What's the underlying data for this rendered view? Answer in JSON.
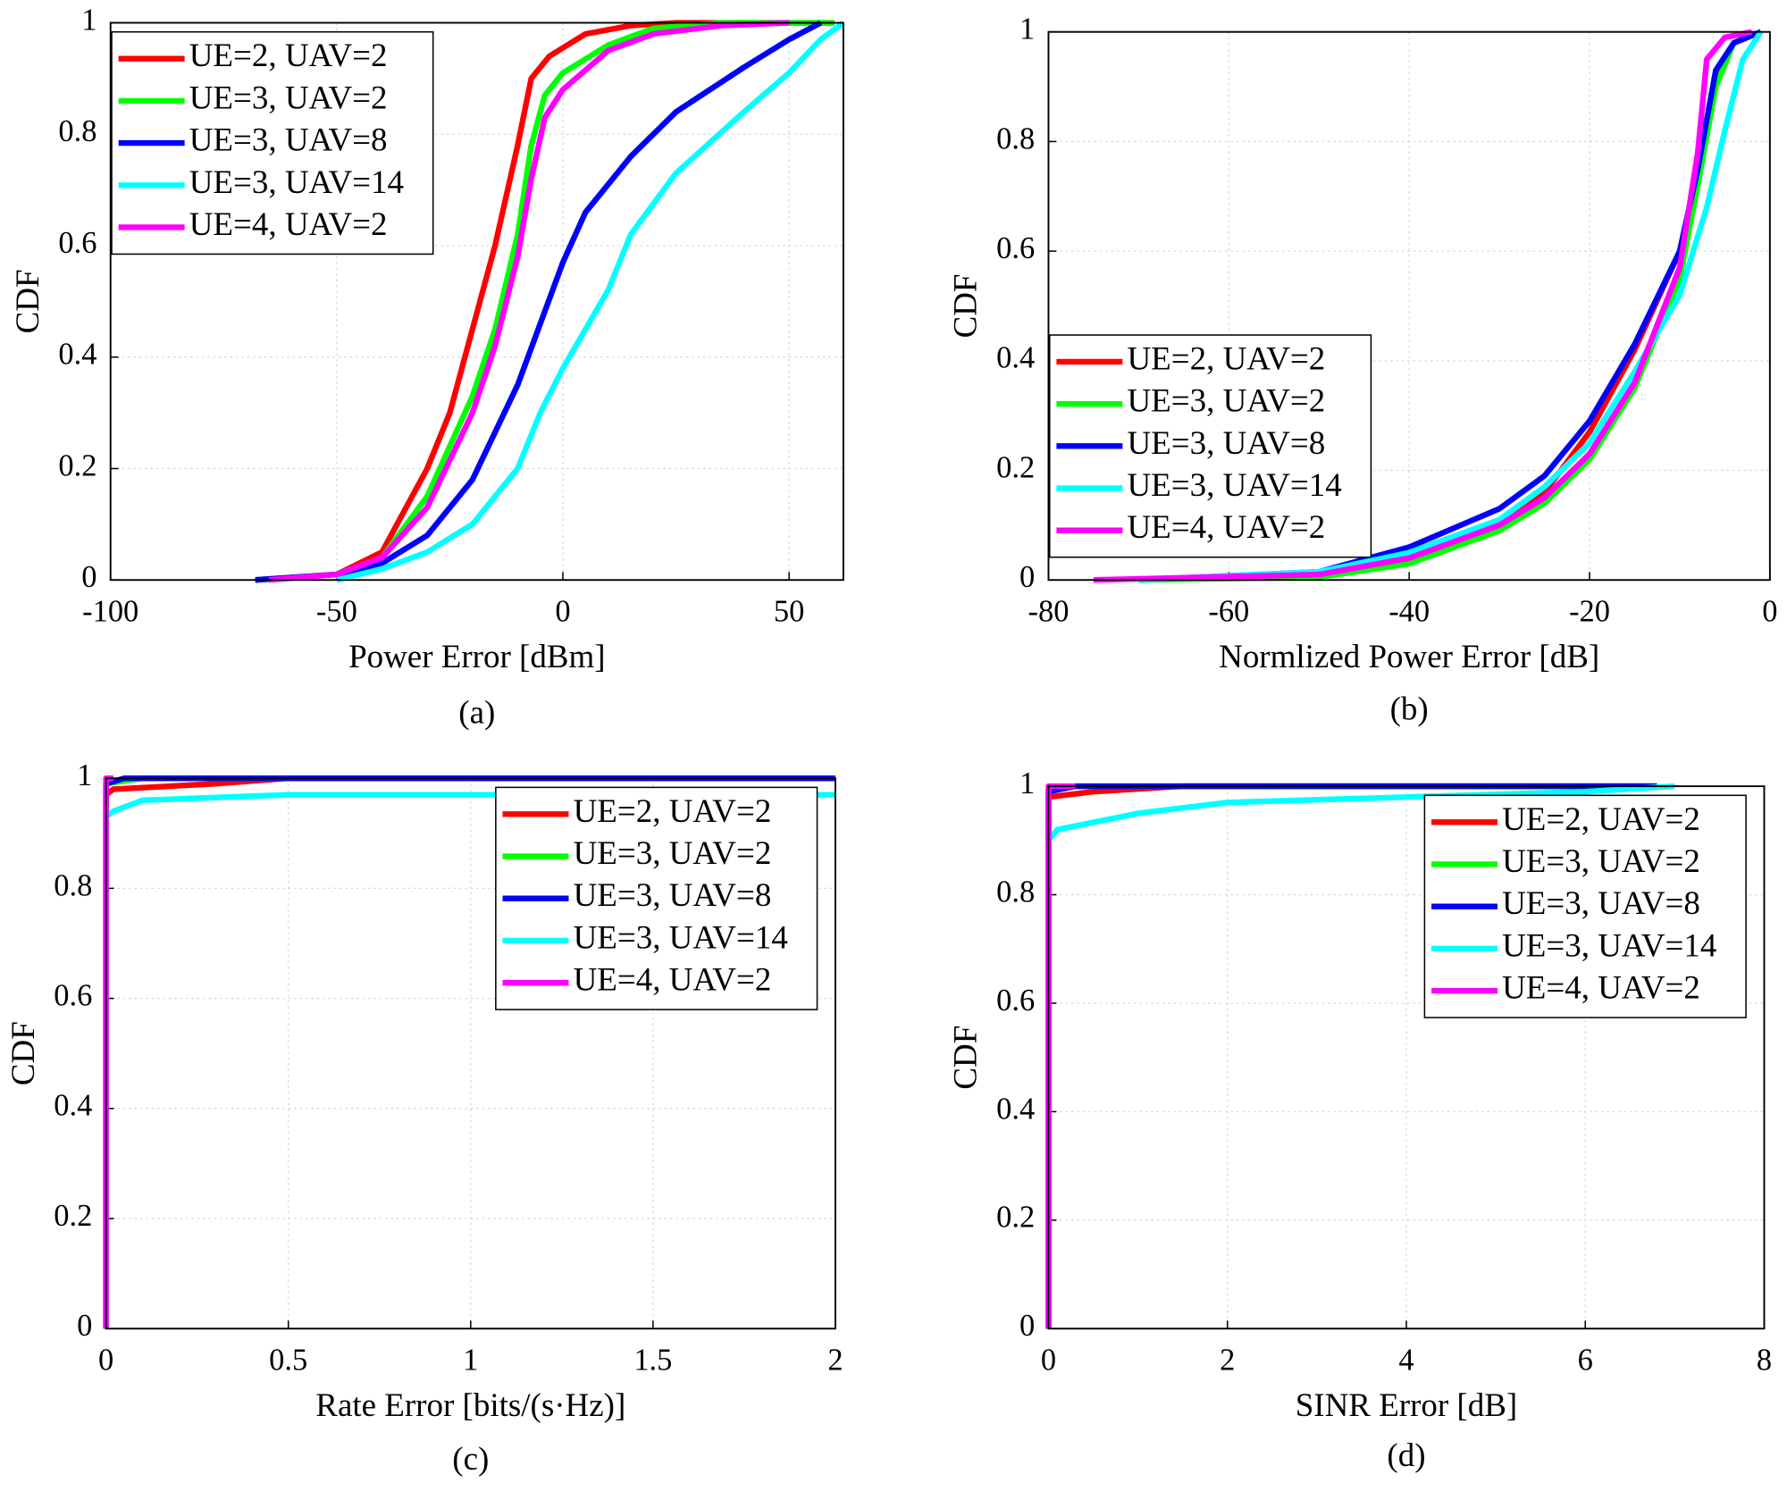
{
  "chart_data": [
    {
      "type": "line",
      "caption": "(a)",
      "xlabel": "Power Error [dBm]",
      "ylabel": "CDF",
      "xlim": [
        -100,
        62
      ],
      "xticks": [
        -100,
        -50,
        0,
        50
      ],
      "ylim": [
        0,
        1
      ],
      "yticks": [
        0,
        0.2,
        0.4,
        0.6,
        0.8,
        1
      ],
      "grid": true,
      "legend": "upper left",
      "series": [
        {
          "name": "UE=2, UAV=2",
          "color": "#ff0000",
          "x": [
            -68,
            -50,
            -40,
            -30,
            -25,
            -20,
            -15,
            -10,
            -7,
            -3,
            5,
            15,
            25,
            60
          ],
          "values": [
            0,
            0.01,
            0.05,
            0.2,
            0.3,
            0.45,
            0.6,
            0.78,
            0.9,
            0.94,
            0.98,
            0.995,
            1,
            1
          ]
        },
        {
          "name": "UE=3, UAV=2",
          "color": "#00ff00",
          "x": [
            -68,
            -50,
            -40,
            -30,
            -20,
            -15,
            -10,
            -7,
            -4,
            0,
            10,
            20,
            35,
            60
          ],
          "values": [
            0,
            0.01,
            0.04,
            0.15,
            0.33,
            0.45,
            0.62,
            0.78,
            0.87,
            0.91,
            0.96,
            0.99,
            1,
            1
          ]
        },
        {
          "name": "UE=3, UAV=8",
          "color": "#0000ff",
          "x": [
            -68,
            -50,
            -40,
            -30,
            -20,
            -10,
            -5,
            0,
            5,
            15,
            25,
            40,
            50,
            57
          ],
          "values": [
            0,
            0.01,
            0.03,
            0.08,
            0.18,
            0.35,
            0.46,
            0.57,
            0.66,
            0.76,
            0.84,
            0.92,
            0.97,
            1
          ]
        },
        {
          "name": "UE=3, UAV=14",
          "color": "#00ffff",
          "x": [
            -50,
            -40,
            -30,
            -20,
            -10,
            -5,
            0,
            10,
            15,
            25,
            40,
            50,
            57,
            62
          ],
          "values": [
            0,
            0.02,
            0.05,
            0.1,
            0.2,
            0.3,
            0.38,
            0.52,
            0.62,
            0.73,
            0.84,
            0.91,
            0.97,
            1
          ]
        },
        {
          "name": "UE=4, UAV=2",
          "color": "#ff00ff",
          "x": [
            -65,
            -50,
            -40,
            -30,
            -20,
            -15,
            -10,
            -7,
            -4,
            0,
            10,
            20,
            35,
            50
          ],
          "values": [
            0,
            0.01,
            0.04,
            0.13,
            0.3,
            0.42,
            0.58,
            0.72,
            0.83,
            0.88,
            0.95,
            0.98,
            0.995,
            1
          ]
        }
      ]
    },
    {
      "type": "line",
      "caption": "(b)",
      "xlabel": "Normlized Power Error [dB]",
      "ylabel": "CDF",
      "xlim": [
        -80,
        0
      ],
      "xticks": [
        -80,
        -60,
        -40,
        -20,
        0
      ],
      "ylim": [
        0,
        1
      ],
      "yticks": [
        0,
        0.2,
        0.4,
        0.6,
        0.8,
        1
      ],
      "grid": true,
      "legend": "lower left",
      "series": [
        {
          "name": "UE=2, UAV=2",
          "color": "#ff0000",
          "x": [
            -70,
            -50,
            -40,
            -30,
            -25,
            -20,
            -15,
            -10,
            -8,
            -6,
            -4,
            -1
          ],
          "values": [
            0,
            0.01,
            0.04,
            0.1,
            0.16,
            0.27,
            0.42,
            0.6,
            0.75,
            0.92,
            0.98,
            1
          ]
        },
        {
          "name": "UE=3, UAV=2",
          "color": "#00ff00",
          "x": [
            -70,
            -50,
            -40,
            -30,
            -25,
            -20,
            -15,
            -10,
            -8,
            -6,
            -4,
            -1
          ],
          "values": [
            0,
            0.005,
            0.03,
            0.09,
            0.14,
            0.22,
            0.35,
            0.55,
            0.72,
            0.9,
            0.98,
            1
          ]
        },
        {
          "name": "UE=3, UAV=8",
          "color": "#0000ff",
          "x": [
            -70,
            -50,
            -40,
            -30,
            -25,
            -20,
            -15,
            -10,
            -8,
            -6,
            -4,
            -1
          ],
          "values": [
            0,
            0.015,
            0.06,
            0.13,
            0.19,
            0.29,
            0.43,
            0.6,
            0.75,
            0.93,
            0.98,
            1
          ]
        },
        {
          "name": "UE=3, UAV=14",
          "color": "#00ffff",
          "x": [
            -70,
            -50,
            -40,
            -30,
            -25,
            -20,
            -15,
            -10,
            -7,
            -5,
            -3,
            -1
          ],
          "values": [
            0,
            0.015,
            0.05,
            0.11,
            0.17,
            0.25,
            0.38,
            0.52,
            0.68,
            0.82,
            0.95,
            1
          ]
        },
        {
          "name": "UE=4, UAV=2",
          "color": "#ff00ff",
          "x": [
            -75,
            -50,
            -40,
            -30,
            -25,
            -20,
            -15,
            -10,
            -8,
            -7,
            -5,
            -2
          ],
          "values": [
            0,
            0.01,
            0.04,
            0.1,
            0.15,
            0.23,
            0.36,
            0.57,
            0.78,
            0.95,
            0.99,
            1
          ]
        }
      ]
    },
    {
      "type": "line",
      "caption": "(c)",
      "xlabel": "Rate Error [bits/(s·Hz)]",
      "ylabel": "CDF",
      "xlim": [
        0,
        2
      ],
      "xticks": [
        0,
        0.5,
        1,
        1.5,
        2
      ],
      "ylim": [
        0,
        1
      ],
      "yticks": [
        0,
        0.2,
        0.4,
        0.6,
        0.8,
        1
      ],
      "grid": true,
      "legend": "upper right",
      "series": [
        {
          "name": "UE=2, UAV=2",
          "color": "#ff0000",
          "x": [
            0,
            0,
            0.02,
            0.3,
            0.5,
            2
          ],
          "values": [
            0,
            0.97,
            0.98,
            0.99,
            1,
            1
          ]
        },
        {
          "name": "UE=3, UAV=2",
          "color": "#00ff00",
          "x": [
            0,
            0,
            0.1,
            2
          ],
          "values": [
            0,
            0.99,
            1,
            1
          ]
        },
        {
          "name": "UE=3, UAV=8",
          "color": "#0000ff",
          "x": [
            0,
            0,
            0.05,
            2
          ],
          "values": [
            0,
            0.99,
            1,
            1
          ]
        },
        {
          "name": "UE=3, UAV=14",
          "color": "#00ffff",
          "x": [
            0,
            0,
            0.02,
            0.1,
            0.5,
            2
          ],
          "values": [
            0,
            0.93,
            0.94,
            0.96,
            0.97,
            0.97
          ]
        },
        {
          "name": "UE=4, UAV=2",
          "color": "#ff00ff",
          "x": [
            0,
            0,
            0.02
          ],
          "values": [
            0,
            1,
            1
          ]
        }
      ]
    },
    {
      "type": "line",
      "caption": "(d)",
      "xlabel": "SINR Error [dB]",
      "ylabel": "CDF",
      "xlim": [
        0,
        8
      ],
      "xticks": [
        0,
        2,
        4,
        6,
        8
      ],
      "ylim": [
        0,
        1
      ],
      "yticks": [
        0,
        0.2,
        0.4,
        0.6,
        0.8,
        1
      ],
      "grid": true,
      "legend": "upper right",
      "series": [
        {
          "name": "UE=2, UAV=2",
          "color": "#ff0000",
          "x": [
            0,
            0,
            0.5,
            1.5,
            6.8
          ],
          "values": [
            0,
            0.98,
            0.99,
            1,
            1
          ]
        },
        {
          "name": "UE=3, UAV=2",
          "color": "#00ff00",
          "x": [
            0,
            0,
            0.3,
            6.7
          ],
          "values": [
            0,
            0.99,
            1,
            1
          ]
        },
        {
          "name": "UE=3, UAV=8",
          "color": "#0000ff",
          "x": [
            0,
            0,
            0.3,
            6.8
          ],
          "values": [
            0,
            0.99,
            1,
            1
          ]
        },
        {
          "name": "UE=3, UAV=14",
          "color": "#00ffff",
          "x": [
            0,
            0,
            0.1,
            1,
            2,
            4,
            6,
            7
          ],
          "values": [
            0,
            0.9,
            0.92,
            0.95,
            0.97,
            0.98,
            0.99,
            1
          ]
        },
        {
          "name": "UE=4, UAV=2",
          "color": "#ff00ff",
          "x": [
            0,
            0,
            0.3
          ],
          "values": [
            0,
            1,
            1
          ]
        }
      ]
    }
  ]
}
